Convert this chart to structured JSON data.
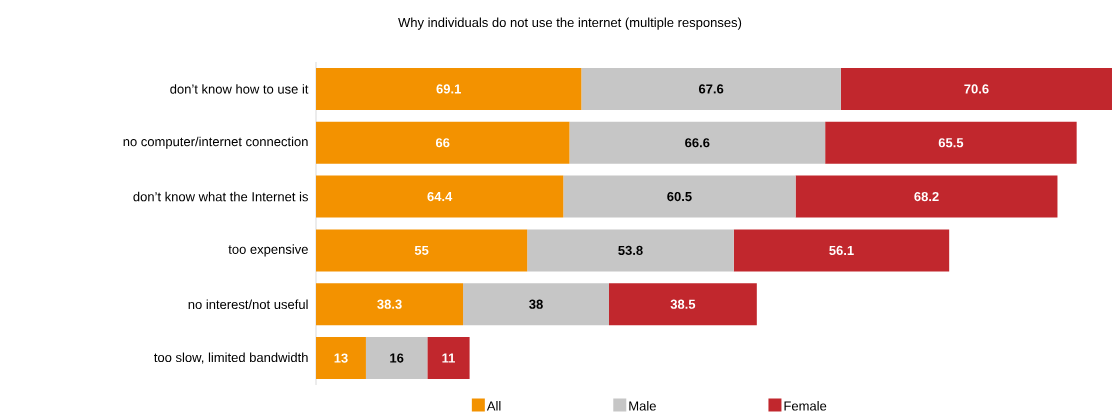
{
  "chart_data": {
    "type": "bar",
    "orientation": "horizontal",
    "stacked": true,
    "title": "Why individuals do not use the internet (multiple responses)",
    "categories": [
      "don’t know how to use it",
      "no computer/internet connection",
      "don’t know what the Internet is",
      "too expensive",
      "no interest/not useful",
      "too slow, limited bandwidth"
    ],
    "series": [
      {
        "name": "All",
        "color": "#f39200",
        "values": [
          69.1,
          66,
          64.4,
          55,
          38.3,
          13
        ]
      },
      {
        "name": "Male",
        "color": "#c6c6c6",
        "values": [
          67.6,
          66.6,
          60.5,
          53.8,
          38,
          16
        ]
      },
      {
        "name": "Female",
        "color": "#c1272d",
        "values": [
          70.6,
          65.5,
          68.2,
          56.1,
          38.5,
          11
        ]
      }
    ],
    "data_labels": true,
    "legend": "bottom",
    "tick_labels": "y"
  }
}
